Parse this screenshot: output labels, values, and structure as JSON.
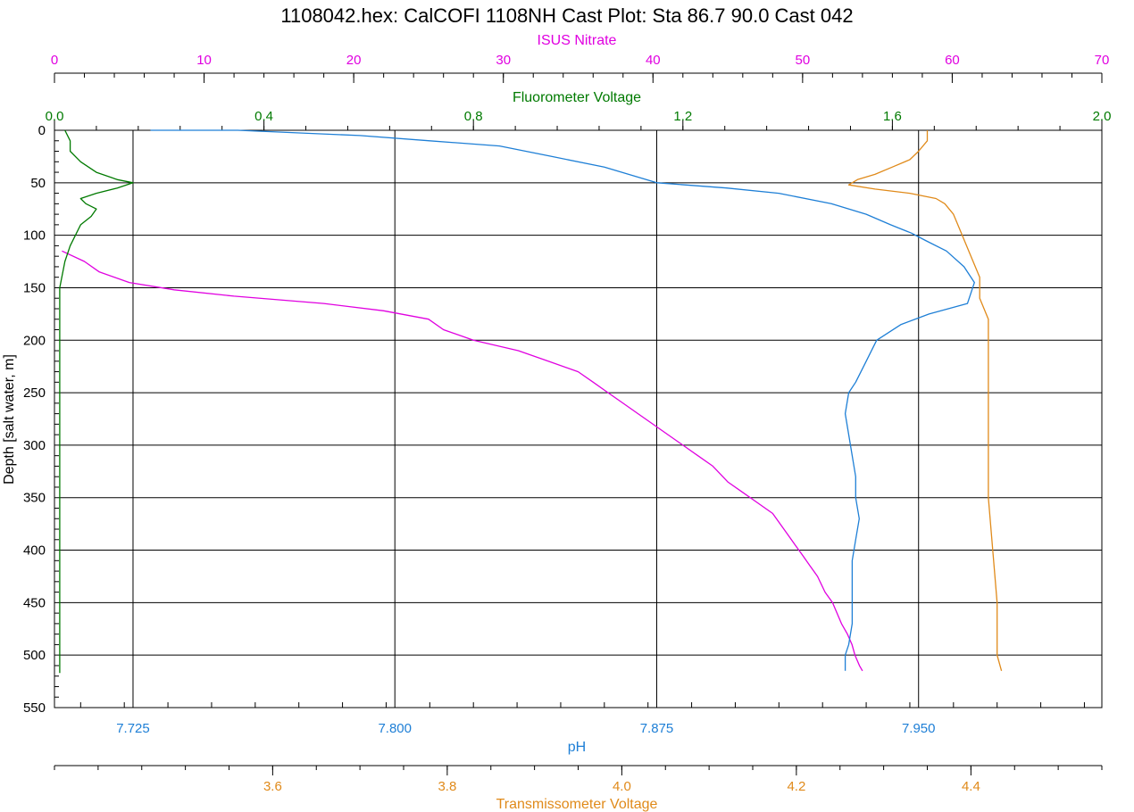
{
  "chart_data": {
    "type": "line",
    "title": "1108042.hex: CalCOFI 1108NH Cast Plot: Sta 86.7 90.0  Cast 042",
    "ylabel": "Depth [salt water, m]",
    "ylim": [
      0,
      550
    ],
    "y_ticks": [
      "0",
      "50",
      "100",
      "150",
      "200",
      "250",
      "300",
      "350",
      "400",
      "450",
      "500",
      "550"
    ],
    "grid": true,
    "axes": {
      "nitrate": {
        "label": "ISUS Nitrate",
        "position": "top",
        "range": [
          0,
          70
        ],
        "ticks": [
          "0",
          "10",
          "20",
          "30",
          "40",
          "50",
          "60",
          "70"
        ],
        "color": "#e000e0"
      },
      "fluorometer": {
        "label": "Fluorometer Voltage",
        "position": "top",
        "range": [
          0.0,
          2.0
        ],
        "ticks": [
          "0.0",
          "0.4",
          "0.8",
          "1.2",
          "1.6",
          "2.0"
        ],
        "color": "#007a00"
      },
      "ph": {
        "label": "pH",
        "position": "bottom",
        "range": [
          7.7025,
          8.0025
        ],
        "ticks": [
          "7.725",
          "7.800",
          "7.875",
          "7.950"
        ],
        "color": "#1e7fd6"
      },
      "transmissometer": {
        "label": "Transmissometer Voltage",
        "position": "bottom",
        "range": [
          3.35,
          4.55
        ],
        "ticks": [
          "3.6",
          "3.8",
          "4.0",
          "4.2",
          "4.4"
        ],
        "color": "#e08a1a"
      }
    },
    "series": [
      {
        "name": "ISUS Nitrate",
        "axis": "nitrate",
        "color": "#e000e0",
        "points": [
          [
            0.5,
            115
          ],
          [
            2,
            125
          ],
          [
            3,
            135
          ],
          [
            5,
            145
          ],
          [
            8,
            152
          ],
          [
            12,
            158
          ],
          [
            18,
            165
          ],
          [
            22,
            172
          ],
          [
            25,
            180
          ],
          [
            26,
            190
          ],
          [
            28,
            200
          ],
          [
            31,
            210
          ],
          [
            33,
            220
          ],
          [
            35,
            230
          ],
          [
            36,
            240
          ],
          [
            37,
            250
          ],
          [
            38,
            260
          ],
          [
            39,
            270
          ],
          [
            40,
            280
          ],
          [
            41,
            290
          ],
          [
            42,
            300
          ],
          [
            43,
            310
          ],
          [
            44,
            320
          ],
          [
            45,
            335
          ],
          [
            46,
            345
          ],
          [
            47,
            355
          ],
          [
            48,
            365
          ],
          [
            48.5,
            375
          ],
          [
            49,
            385
          ],
          [
            49.5,
            395
          ],
          [
            50,
            405
          ],
          [
            50.5,
            415
          ],
          [
            51,
            425
          ],
          [
            51.5,
            440
          ],
          [
            52,
            450
          ],
          [
            52.3,
            460
          ],
          [
            52.6,
            470
          ],
          [
            53,
            480
          ],
          [
            53.3,
            490
          ],
          [
            53.5,
            500
          ],
          [
            53.8,
            510
          ],
          [
            54,
            515
          ]
        ]
      },
      {
        "name": "Fluorometer Voltage",
        "axis": "fluorometer",
        "color": "#007a00",
        "points": [
          [
            0.02,
            0
          ],
          [
            0.03,
            10
          ],
          [
            0.03,
            20
          ],
          [
            0.05,
            30
          ],
          [
            0.08,
            40
          ],
          [
            0.12,
            47
          ],
          [
            0.15,
            50
          ],
          [
            0.12,
            55
          ],
          [
            0.08,
            60
          ],
          [
            0.05,
            65
          ],
          [
            0.06,
            70
          ],
          [
            0.08,
            75
          ],
          [
            0.07,
            82
          ],
          [
            0.05,
            90
          ],
          [
            0.04,
            100
          ],
          [
            0.03,
            110
          ],
          [
            0.02,
            125
          ],
          [
            0.01,
            150
          ],
          [
            0.01,
            200
          ],
          [
            0.01,
            300
          ],
          [
            0.01,
            400
          ],
          [
            0.01,
            500
          ],
          [
            0.01,
            517
          ]
        ]
      },
      {
        "name": "pH",
        "axis": "ph",
        "color": "#1e7fd6",
        "points": [
          [
            7.73,
            0
          ],
          [
            7.755,
            0
          ],
          [
            7.79,
            5
          ],
          [
            7.81,
            10
          ],
          [
            7.83,
            15
          ],
          [
            7.845,
            25
          ],
          [
            7.86,
            35
          ],
          [
            7.875,
            50
          ],
          [
            7.895,
            55
          ],
          [
            7.91,
            60
          ],
          [
            7.925,
            70
          ],
          [
            7.935,
            80
          ],
          [
            7.942,
            90
          ],
          [
            7.948,
            98
          ],
          [
            7.952,
            105
          ],
          [
            7.958,
            115
          ],
          [
            7.963,
            130
          ],
          [
            7.966,
            145
          ],
          [
            7.964,
            165
          ],
          [
            7.953,
            175
          ],
          [
            7.945,
            185
          ],
          [
            7.938,
            200
          ],
          [
            7.935,
            220
          ],
          [
            7.932,
            240
          ],
          [
            7.93,
            250
          ],
          [
            7.929,
            270
          ],
          [
            7.93,
            290
          ],
          [
            7.931,
            310
          ],
          [
            7.932,
            330
          ],
          [
            7.932,
            350
          ],
          [
            7.933,
            370
          ],
          [
            7.932,
            390
          ],
          [
            7.931,
            410
          ],
          [
            7.931,
            430
          ],
          [
            7.931,
            450
          ],
          [
            7.931,
            470
          ],
          [
            7.93,
            490
          ],
          [
            7.929,
            500
          ],
          [
            7.929,
            515
          ]
        ]
      },
      {
        "name": "Transmissometer Voltage",
        "axis": "transmissometer",
        "color": "#e08a1a",
        "points": [
          [
            4.35,
            0
          ],
          [
            4.35,
            10
          ],
          [
            4.34,
            20
          ],
          [
            4.33,
            28
          ],
          [
            4.31,
            35
          ],
          [
            4.29,
            42
          ],
          [
            4.27,
            47
          ],
          [
            4.26,
            52
          ],
          [
            4.29,
            56
          ],
          [
            4.33,
            60
          ],
          [
            4.36,
            65
          ],
          [
            4.37,
            70
          ],
          [
            4.38,
            80
          ],
          [
            4.39,
            100
          ],
          [
            4.4,
            120
          ],
          [
            4.41,
            140
          ],
          [
            4.41,
            160
          ],
          [
            4.42,
            180
          ],
          [
            4.42,
            200
          ],
          [
            4.42,
            250
          ],
          [
            4.42,
            300
          ],
          [
            4.42,
            350
          ],
          [
            4.425,
            400
          ],
          [
            4.43,
            450
          ],
          [
            4.43,
            500
          ],
          [
            4.435,
            515
          ]
        ]
      }
    ]
  }
}
